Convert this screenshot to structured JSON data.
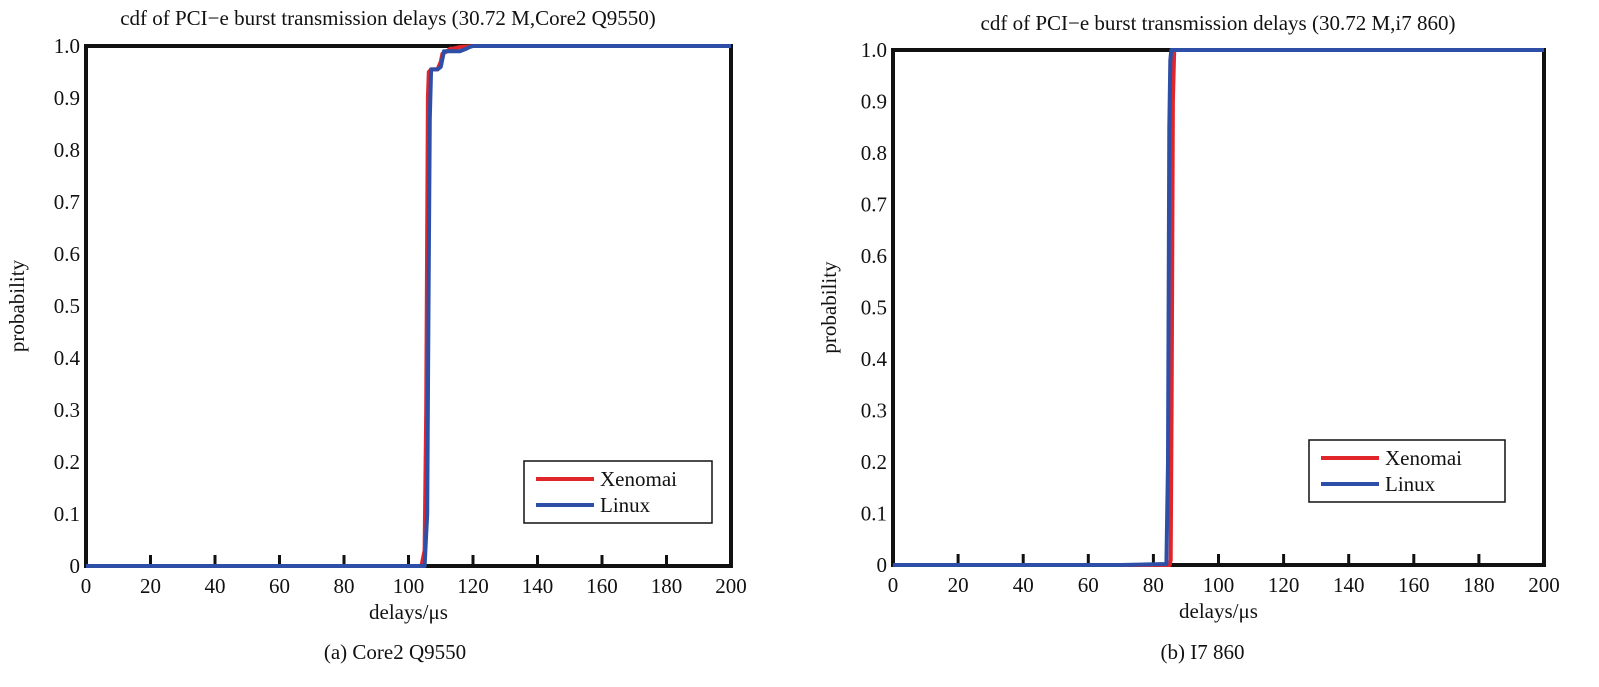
{
  "colors": {
    "xenomai": "#e0262b",
    "linux": "#2e4fa8",
    "axis": "#111111"
  },
  "chart_data": [
    {
      "type": "line",
      "title": "cdf of PCI−e burst transmission delays (30.72 M,Core2 Q9550)",
      "xlabel": "delays/μs",
      "ylabel": "probability",
      "caption": "(a) Core2 Q9550",
      "xlim": [
        0,
        200
      ],
      "ylim": [
        0,
        1
      ],
      "xticks": [
        0,
        20,
        40,
        60,
        80,
        100,
        120,
        140,
        160,
        180,
        200
      ],
      "xtick_labels": [
        "0",
        "20",
        "40",
        "60",
        "80",
        "100",
        "120",
        "140",
        "160",
        "180",
        "200"
      ],
      "yticks": [
        0,
        0.1,
        0.2,
        0.3,
        0.4,
        0.5,
        0.6,
        0.7,
        0.8,
        0.9,
        1.0
      ],
      "ytick_labels": [
        "0",
        "0.1",
        "0.2",
        "0.3",
        "0.4",
        "0.5",
        "0.6",
        "0.7",
        "0.8",
        "0.9",
        "1.0"
      ],
      "grid": false,
      "legend": "lower-right",
      "series": [
        {
          "name": "Xenomai",
          "color": "#e0262b",
          "x": [
            0,
            104,
            105,
            105.5,
            106,
            106.3,
            107,
            109,
            110,
            110.5,
            112,
            113,
            114,
            116,
            118,
            120,
            200
          ],
          "y": [
            0,
            0,
            0.03,
            0.3,
            0.9,
            0.95,
            0.955,
            0.955,
            0.97,
            0.985,
            0.99,
            0.995,
            0.995,
            0.998,
            0.999,
            1.0,
            1.0
          ]
        },
        {
          "name": "Linux",
          "color": "#2e4fa8",
          "x": [
            0,
            105,
            105.8,
            106.2,
            106.6,
            107,
            109,
            110,
            110.5,
            111,
            113,
            116,
            118,
            119,
            120,
            200
          ],
          "y": [
            0,
            0,
            0.1,
            0.5,
            0.86,
            0.955,
            0.955,
            0.96,
            0.975,
            0.99,
            0.99,
            0.99,
            0.995,
            0.998,
            1.0,
            1.0
          ]
        }
      ]
    },
    {
      "type": "line",
      "title": "cdf of PCI−e burst transmission delays (30.72 M,i7 860)",
      "xlabel": "delays/μs",
      "ylabel": "probability",
      "caption": "(b) I7 860",
      "xlim": [
        0,
        200
      ],
      "ylim": [
        0,
        1
      ],
      "xticks": [
        0,
        20,
        40,
        60,
        80,
        100,
        120,
        140,
        160,
        180,
        200
      ],
      "xtick_labels": [
        "0",
        "20",
        "40",
        "60",
        "80",
        "100",
        "120",
        "140",
        "160",
        "180",
        "200"
      ],
      "yticks": [
        0,
        0.1,
        0.2,
        0.3,
        0.4,
        0.5,
        0.6,
        0.7,
        0.8,
        0.9,
        1.0
      ],
      "ytick_labels": [
        "0",
        "0.1",
        "0.2",
        "0.3",
        "0.4",
        "0.5",
        "0.6",
        "0.7",
        "0.8",
        "0.9",
        "1.0"
      ],
      "grid": false,
      "legend": "lower-right",
      "series": [
        {
          "name": "Xenomai",
          "color": "#e0262b",
          "x": [
            0,
            85,
            85.3,
            85.6,
            86,
            86.4,
            200
          ],
          "y": [
            0,
            0,
            0.01,
            0.3,
            0.9,
            1.0,
            1.0
          ]
        },
        {
          "name": "Linux",
          "color": "#2e4fa8",
          "x": [
            0,
            70,
            84,
            84.5,
            84.9,
            85.2,
            85.5,
            200
          ],
          "y": [
            0,
            0,
            0.002,
            0.2,
            0.85,
            0.98,
            1.0,
            1.0
          ]
        }
      ]
    }
  ]
}
